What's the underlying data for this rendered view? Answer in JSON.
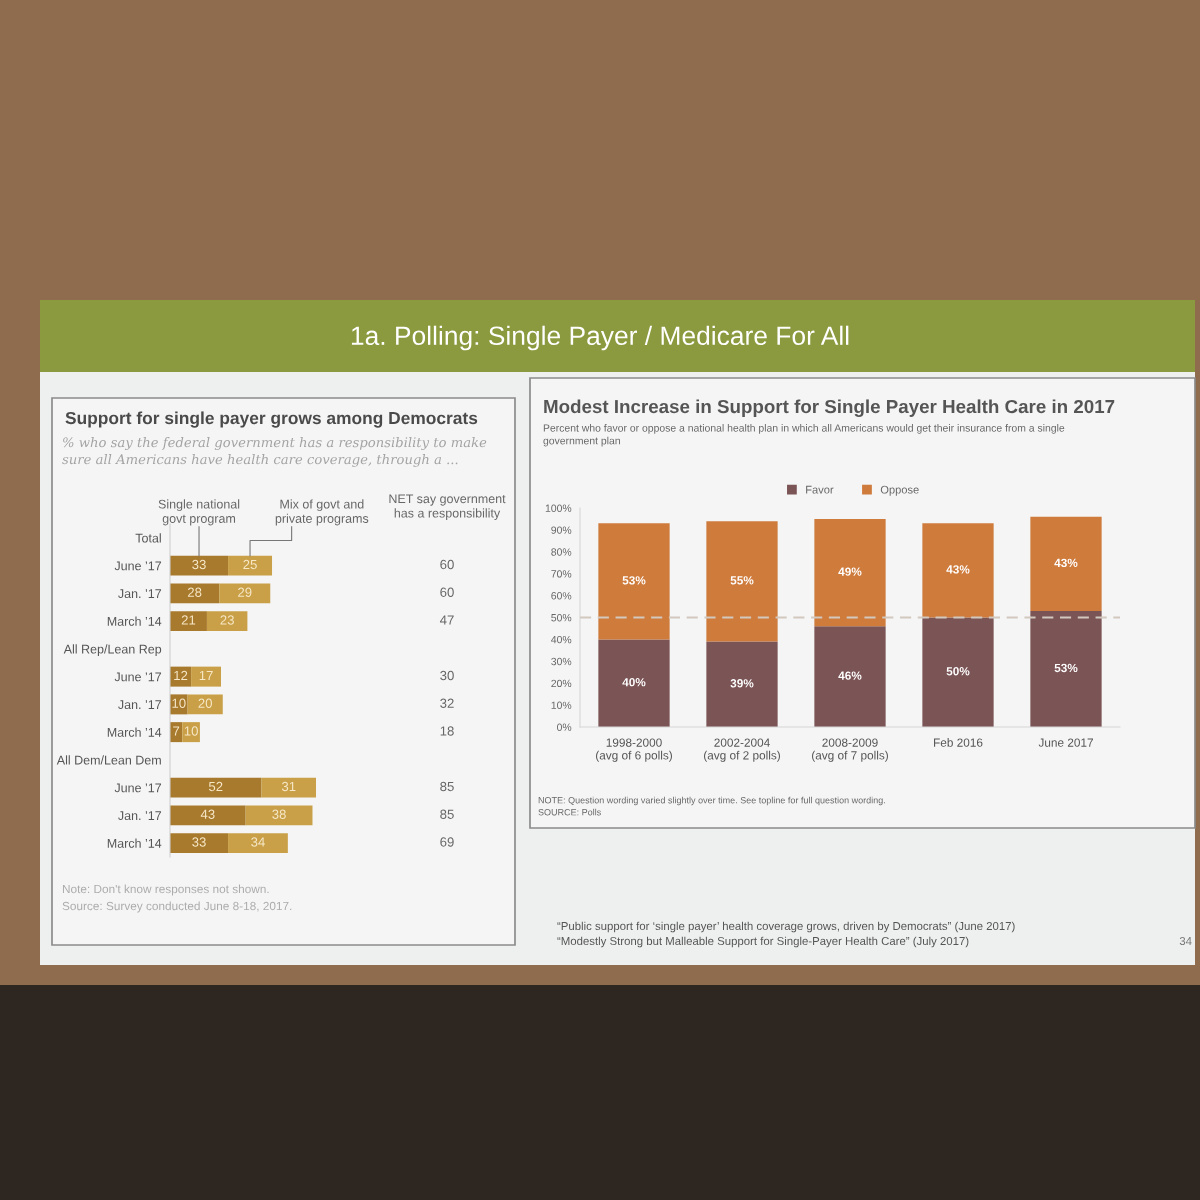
{
  "chart_data": [
    {
      "type": "other",
      "title": "1a. Polling: Single Payer / Medicare For All",
      "annotations": [
        "“Public support for ‘single payer’ health coverage grows, driven by Democrats” (June 2017)",
        "“Modestly Strong but Malleable Support for Single-Payer Health Care” (July 2017)",
        "34"
      ]
    },
    {
      "type": "bar",
      "orientation": "horizontal",
      "stacked": true,
      "title": "Support for single payer grows among Democrats",
      "subtitle": "% who say the federal government has a responsibility to make sure all Americans have health care coverage, through a ...",
      "categories": [
        "Total",
        "June ’17",
        "Jan. ’17",
        "March ’14",
        "All Rep/Lean Rep",
        "June ’17",
        "Jan. ’17",
        "March ’14",
        "All Dem/Lean Dem",
        "June ’17",
        "Jan. ’17",
        "March ’14"
      ],
      "series": [
        {
          "name": "Single national govt program",
          "color": "#a87a2e",
          "values": [
            null,
            33,
            28,
            21,
            null,
            12,
            10,
            7,
            null,
            52,
            43,
            33
          ]
        },
        {
          "name": "Mix of govt and private programs",
          "color": "#c9a048",
          "values": [
            null,
            25,
            29,
            23,
            null,
            17,
            20,
            10,
            null,
            31,
            38,
            34
          ]
        }
      ],
      "data_labels": true,
      "tick_labels": "y",
      "annotations": [
        "Note: Don't know responses not shown.",
        "Source: Survey conducted June 8-18, 2017."
      ]
    },
    {
      "type": "other",
      "title": "NET say government has a responsibility",
      "values": [
        null,
        60,
        60,
        47,
        null,
        30,
        32,
        18,
        null,
        85,
        85,
        69
      ],
      "data_labels": true
    },
    {
      "type": "bar",
      "stacked": true,
      "title": "Modest Increase in Support for Single Payer Health Care in 2017",
      "subtitle": "Percent who favor or oppose a national health plan in which all Americans would get their insurance from a single government plan",
      "categories": [
        "1998-2000\n(avg of 6 polls)",
        "2002-2004\n(avg of 2 polls)",
        "2008-2009\n(avg of 7 polls)",
        "Feb 2016",
        "June 2017"
      ],
      "series": [
        {
          "name": "Favor",
          "color": "#7b5456",
          "values": [
            40,
            39,
            46,
            50,
            53
          ],
          "value_labels": [
            "40%",
            "39%",
            "46%",
            "50%",
            "53%"
          ]
        },
        {
          "name": "Oppose",
          "color": "#cf7b3c",
          "values": [
            53,
            55,
            49,
            43,
            43
          ],
          "value_labels": [
            "53%",
            "55%",
            "49%",
            "43%",
            "43%"
          ]
        }
      ],
      "ylim": [
        0,
        100
      ],
      "yticks": [
        {
          "value": 0,
          "label": "0%"
        },
        {
          "value": 10,
          "label": "10%"
        },
        {
          "value": 20,
          "label": "20%"
        },
        {
          "value": 30,
          "label": "30%"
        },
        {
          "value": 40,
          "label": "40%"
        },
        {
          "value": 50,
          "label": "50%"
        },
        {
          "value": 60,
          "label": "60%"
        },
        {
          "value": 70,
          "label": "70%"
        },
        {
          "value": 80,
          "label": "80%"
        },
        {
          "value": 90,
          "label": "90%"
        },
        {
          "value": 100,
          "label": "100%"
        }
      ],
      "legend": "top",
      "ref_lines": [
        {
          "axis": "y",
          "value": 50,
          "color": "#d2c8be",
          "line_style": "dashed"
        }
      ],
      "annotations": [
        "NOTE: Question wording varied slightly over time. See topline for full question wording.",
        "SOURCE: Polls"
      ]
    }
  ]
}
